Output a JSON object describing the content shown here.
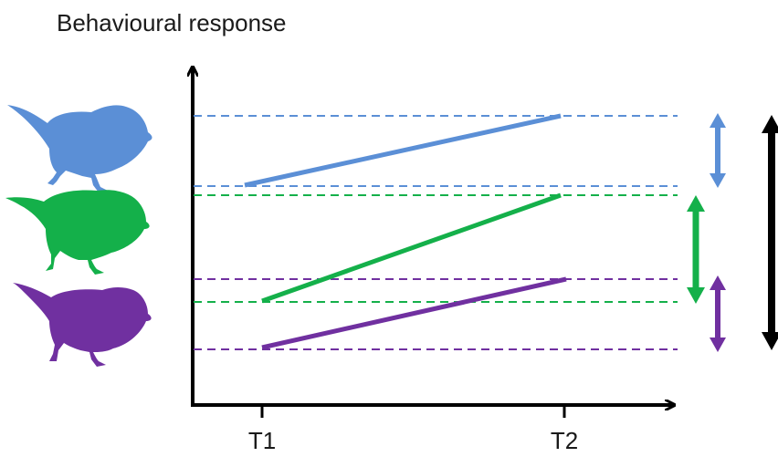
{
  "diagram": {
    "y_axis_label": "Behavioural response",
    "x_ticks": [
      "T1",
      "T2"
    ],
    "colors": {
      "blue": "#5b8fd6",
      "green": "#14b04a",
      "purple": "#7030a0",
      "axis": "#000000"
    },
    "individuals": [
      {
        "name": "blue",
        "color": "#5b8fd6",
        "response_t1": "low",
        "response_t2": "high"
      },
      {
        "name": "green",
        "color": "#14b04a",
        "response_t1": "low",
        "response_t2": "high"
      },
      {
        "name": "purple",
        "color": "#7030a0",
        "response_t1": "low",
        "response_t2": "high"
      }
    ],
    "icons": [
      "bird-blue-icon",
      "bird-green-icon",
      "bird-purple-icon",
      "double-arrow-icon"
    ]
  }
}
